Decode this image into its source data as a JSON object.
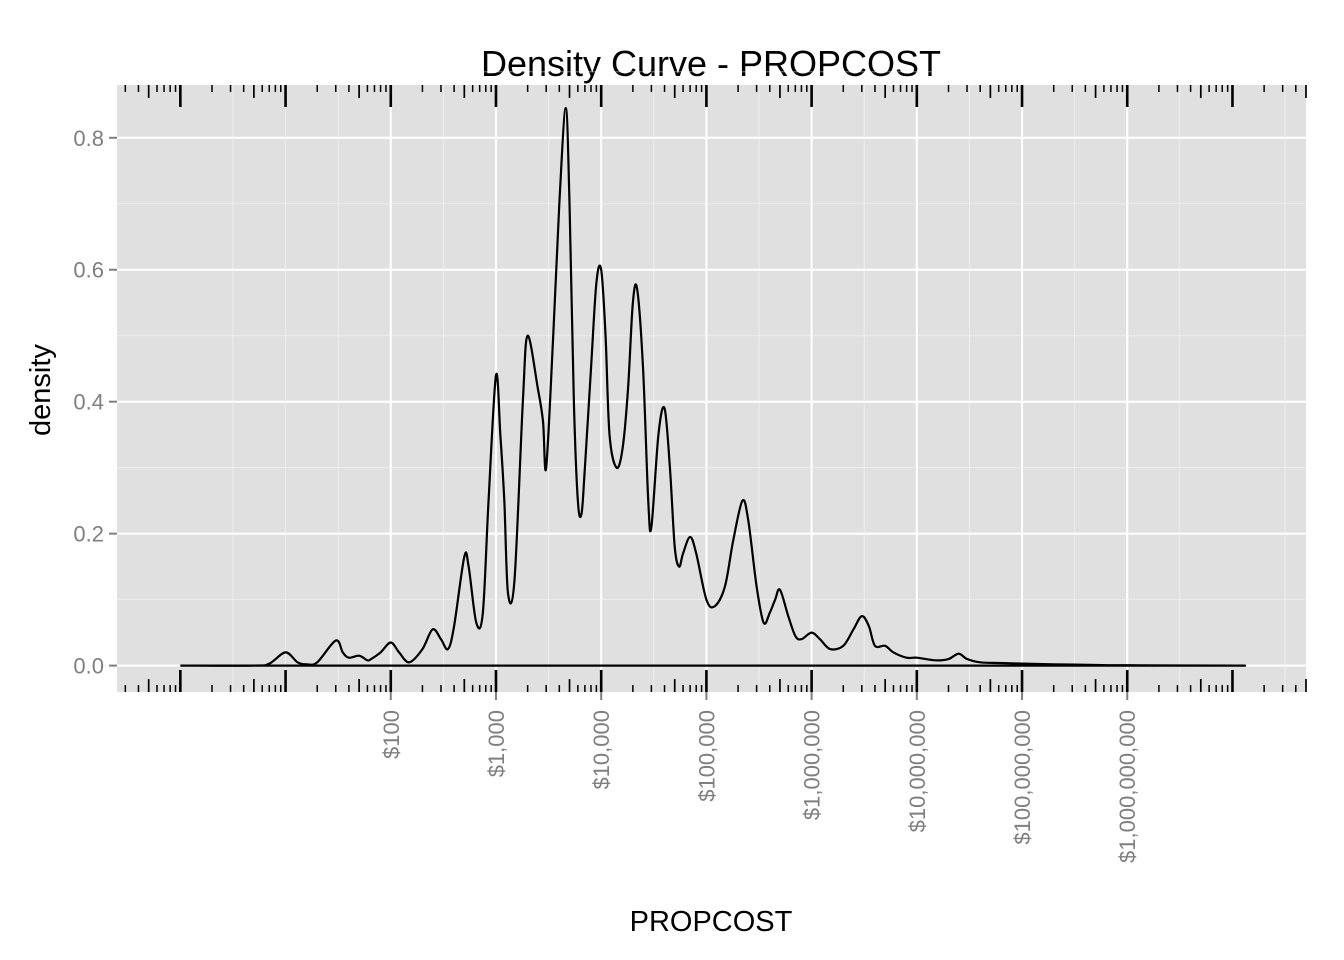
{
  "chart_data": {
    "type": "line",
    "title": "Density Curve - PROPCOST",
    "xlabel": "PROPCOST",
    "ylabel": "density",
    "x_scale": "log10",
    "xlim": [
      0.25,
      50000000000
    ],
    "ylim": [
      -0.04,
      0.88
    ],
    "grid": true,
    "legend": "none",
    "colors": {
      "panel": "#e0e0e0",
      "grid": "#ffffff",
      "line": "#000000",
      "tick_label": "#7f7f7f"
    },
    "x_ticks": [
      {
        "value": 100,
        "label": "$100"
      },
      {
        "value": 1000,
        "label": "$1,000"
      },
      {
        "value": 10000,
        "label": "$10,000"
      },
      {
        "value": 100000,
        "label": "$100,000"
      },
      {
        "value": 1000000,
        "label": "$1,000,000"
      },
      {
        "value": 10000000,
        "label": "$10,000,000"
      },
      {
        "value": 100000000,
        "label": "$100,000,000"
      },
      {
        "value": 1000000000,
        "label": "$1,000,000,000"
      }
    ],
    "y_ticks": [
      {
        "value": 0,
        "label": "0.0"
      },
      {
        "value": 0.2,
        "label": "0.2"
      },
      {
        "value": 0.4,
        "label": "0.4"
      },
      {
        "value": 0.6,
        "label": "0.6"
      },
      {
        "value": 0.8,
        "label": "0.8"
      }
    ],
    "series": [
      {
        "x": [
          1,
          5,
          7,
          10,
          13,
          16,
          20,
          30,
          35,
          40,
          50,
          60,
          65,
          80,
          100,
          120,
          150,
          200,
          250,
          300,
          350,
          400,
          500,
          550,
          650,
          750,
          850,
          1000,
          1100,
          1200,
          1300,
          1500,
          1800,
          2000,
          2500,
          2800,
          3000,
          3500,
          4000,
          4600,
          5000,
          5500,
          6000,
          6500,
          7000,
          8000,
          9000,
          10000,
          11000,
          12000,
          14000,
          16000,
          18000,
          20000,
          22000,
          25000,
          28000,
          30000,
          35000,
          40000,
          45000,
          50000,
          55000,
          60000,
          70000,
          80000,
          100000,
          120000,
          150000,
          180000,
          220000,
          250000,
          300000,
          350000,
          400000,
          450000,
          500000,
          600000,
          700000,
          800000,
          1000000,
          1200000,
          1500000,
          2000000,
          2500000,
          3000000,
          3500000,
          4000000,
          5000000,
          6000000,
          8000000,
          10000000,
          15000000,
          20000000,
          25000000,
          30000000,
          40000000,
          60000000,
          100000000,
          200000000,
          500000000,
          1000000000,
          10000000000,
          13000000000
        ],
        "y": [
          0,
          0,
          0.003,
          0.02,
          0.005,
          0.002,
          0.005,
          0.038,
          0.02,
          0.012,
          0.015,
          0.008,
          0.01,
          0.02,
          0.035,
          0.02,
          0.005,
          0.025,
          0.055,
          0.04,
          0.025,
          0.06,
          0.165,
          0.15,
          0.065,
          0.08,
          0.25,
          0.44,
          0.35,
          0.25,
          0.11,
          0.13,
          0.4,
          0.5,
          0.42,
          0.37,
          0.3,
          0.5,
          0.7,
          0.845,
          0.7,
          0.4,
          0.25,
          0.23,
          0.3,
          0.45,
          0.58,
          0.6,
          0.5,
          0.35,
          0.3,
          0.33,
          0.42,
          0.55,
          0.57,
          0.45,
          0.25,
          0.21,
          0.35,
          0.39,
          0.3,
          0.18,
          0.15,
          0.17,
          0.195,
          0.17,
          0.1,
          0.09,
          0.12,
          0.19,
          0.25,
          0.22,
          0.12,
          0.065,
          0.08,
          0.1,
          0.115,
          0.075,
          0.045,
          0.04,
          0.05,
          0.04,
          0.025,
          0.03,
          0.055,
          0.075,
          0.06,
          0.03,
          0.03,
          0.02,
          0.012,
          0.012,
          0.008,
          0.01,
          0.018,
          0.01,
          0.005,
          0.004,
          0.003,
          0.002,
          0.001,
          0.0005,
          0,
          0
        ]
      }
    ]
  }
}
